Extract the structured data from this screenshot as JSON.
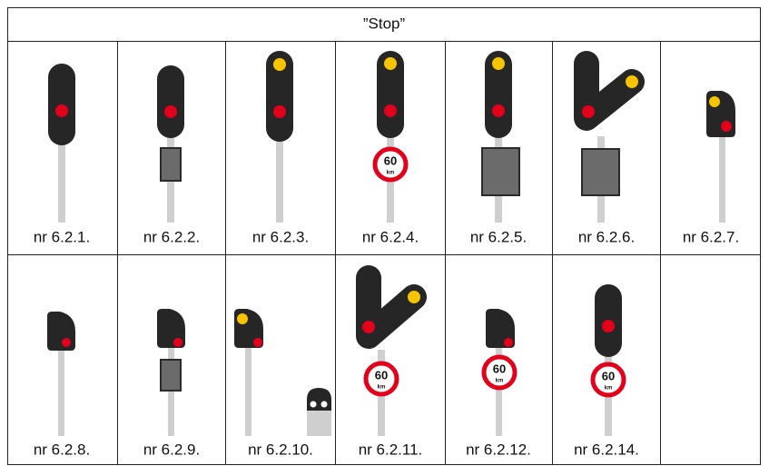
{
  "header": {
    "title": "”Stop”"
  },
  "signs": {
    "speed": "60",
    "unit": "km"
  },
  "table": {
    "rows": [
      [
        "nr 6.2.1.",
        "nr 6.2.2.",
        "nr 6.2.3.",
        "nr 6.2.4.",
        "nr 6.2.5.",
        "nr 6.2.6.",
        "nr 6.2.7."
      ],
      [
        "nr 6.2.8.",
        "nr 6.2.9.",
        "nr 6.2.10.",
        "nr 6.2.11.",
        "nr 6.2.12.",
        "nr 6.2.14."
      ]
    ]
  }
}
